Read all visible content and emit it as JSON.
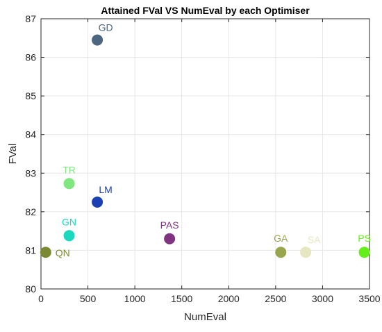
{
  "chart_data": {
    "type": "scatter",
    "title": "Attained FVal VS NumEval by each Optimiser",
    "xlabel": "NumEval",
    "ylabel": "FVal",
    "xlim": [
      0,
      3500
    ],
    "ylim": [
      80,
      87
    ],
    "xticks": [
      0,
      500,
      1000,
      1500,
      2000,
      2500,
      3000,
      3500
    ],
    "yticks": [
      80,
      81,
      82,
      83,
      84,
      85,
      86,
      87
    ],
    "grid": true,
    "legend": "none",
    "points": [
      {
        "label": "GD",
        "x": 600,
        "y": 86.45,
        "color": "#4d6680",
        "label_color": "#4d6680",
        "label_pos": "above-right"
      },
      {
        "label": "TR",
        "x": 300,
        "y": 82.73,
        "color": "#80e680",
        "label_color": "#80e680",
        "label_pos": "above"
      },
      {
        "label": "LM",
        "x": 600,
        "y": 82.25,
        "color": "#1a40b3",
        "label_color": "#1a40b3",
        "label_pos": "above-right"
      },
      {
        "label": "GN",
        "x": 300,
        "y": 81.38,
        "color": "#1ad9bf",
        "label_color": "#1ad9bf",
        "label_pos": "above"
      },
      {
        "label": "PAS",
        "x": 1370,
        "y": 81.3,
        "color": "#803380",
        "label_color": "#803380",
        "label_pos": "above"
      },
      {
        "label": "QN",
        "x": 50,
        "y": 80.95,
        "color": "#7a8a33",
        "label_color": "#7a8a33",
        "label_pos": "right"
      },
      {
        "label": "GA",
        "x": 2555,
        "y": 80.95,
        "color": "#99a64d",
        "label_color": "#99a64d",
        "label_pos": "above"
      },
      {
        "label": "SA",
        "x": 2820,
        "y": 80.95,
        "color": "#e6e6c0",
        "label_color": "#e6e6c0",
        "label_pos": "above-right"
      },
      {
        "label": "PS",
        "x": 3445,
        "y": 80.95,
        "color": "#66ee1a",
        "label_color": "#66ee1a",
        "label_pos": "above"
      }
    ]
  }
}
